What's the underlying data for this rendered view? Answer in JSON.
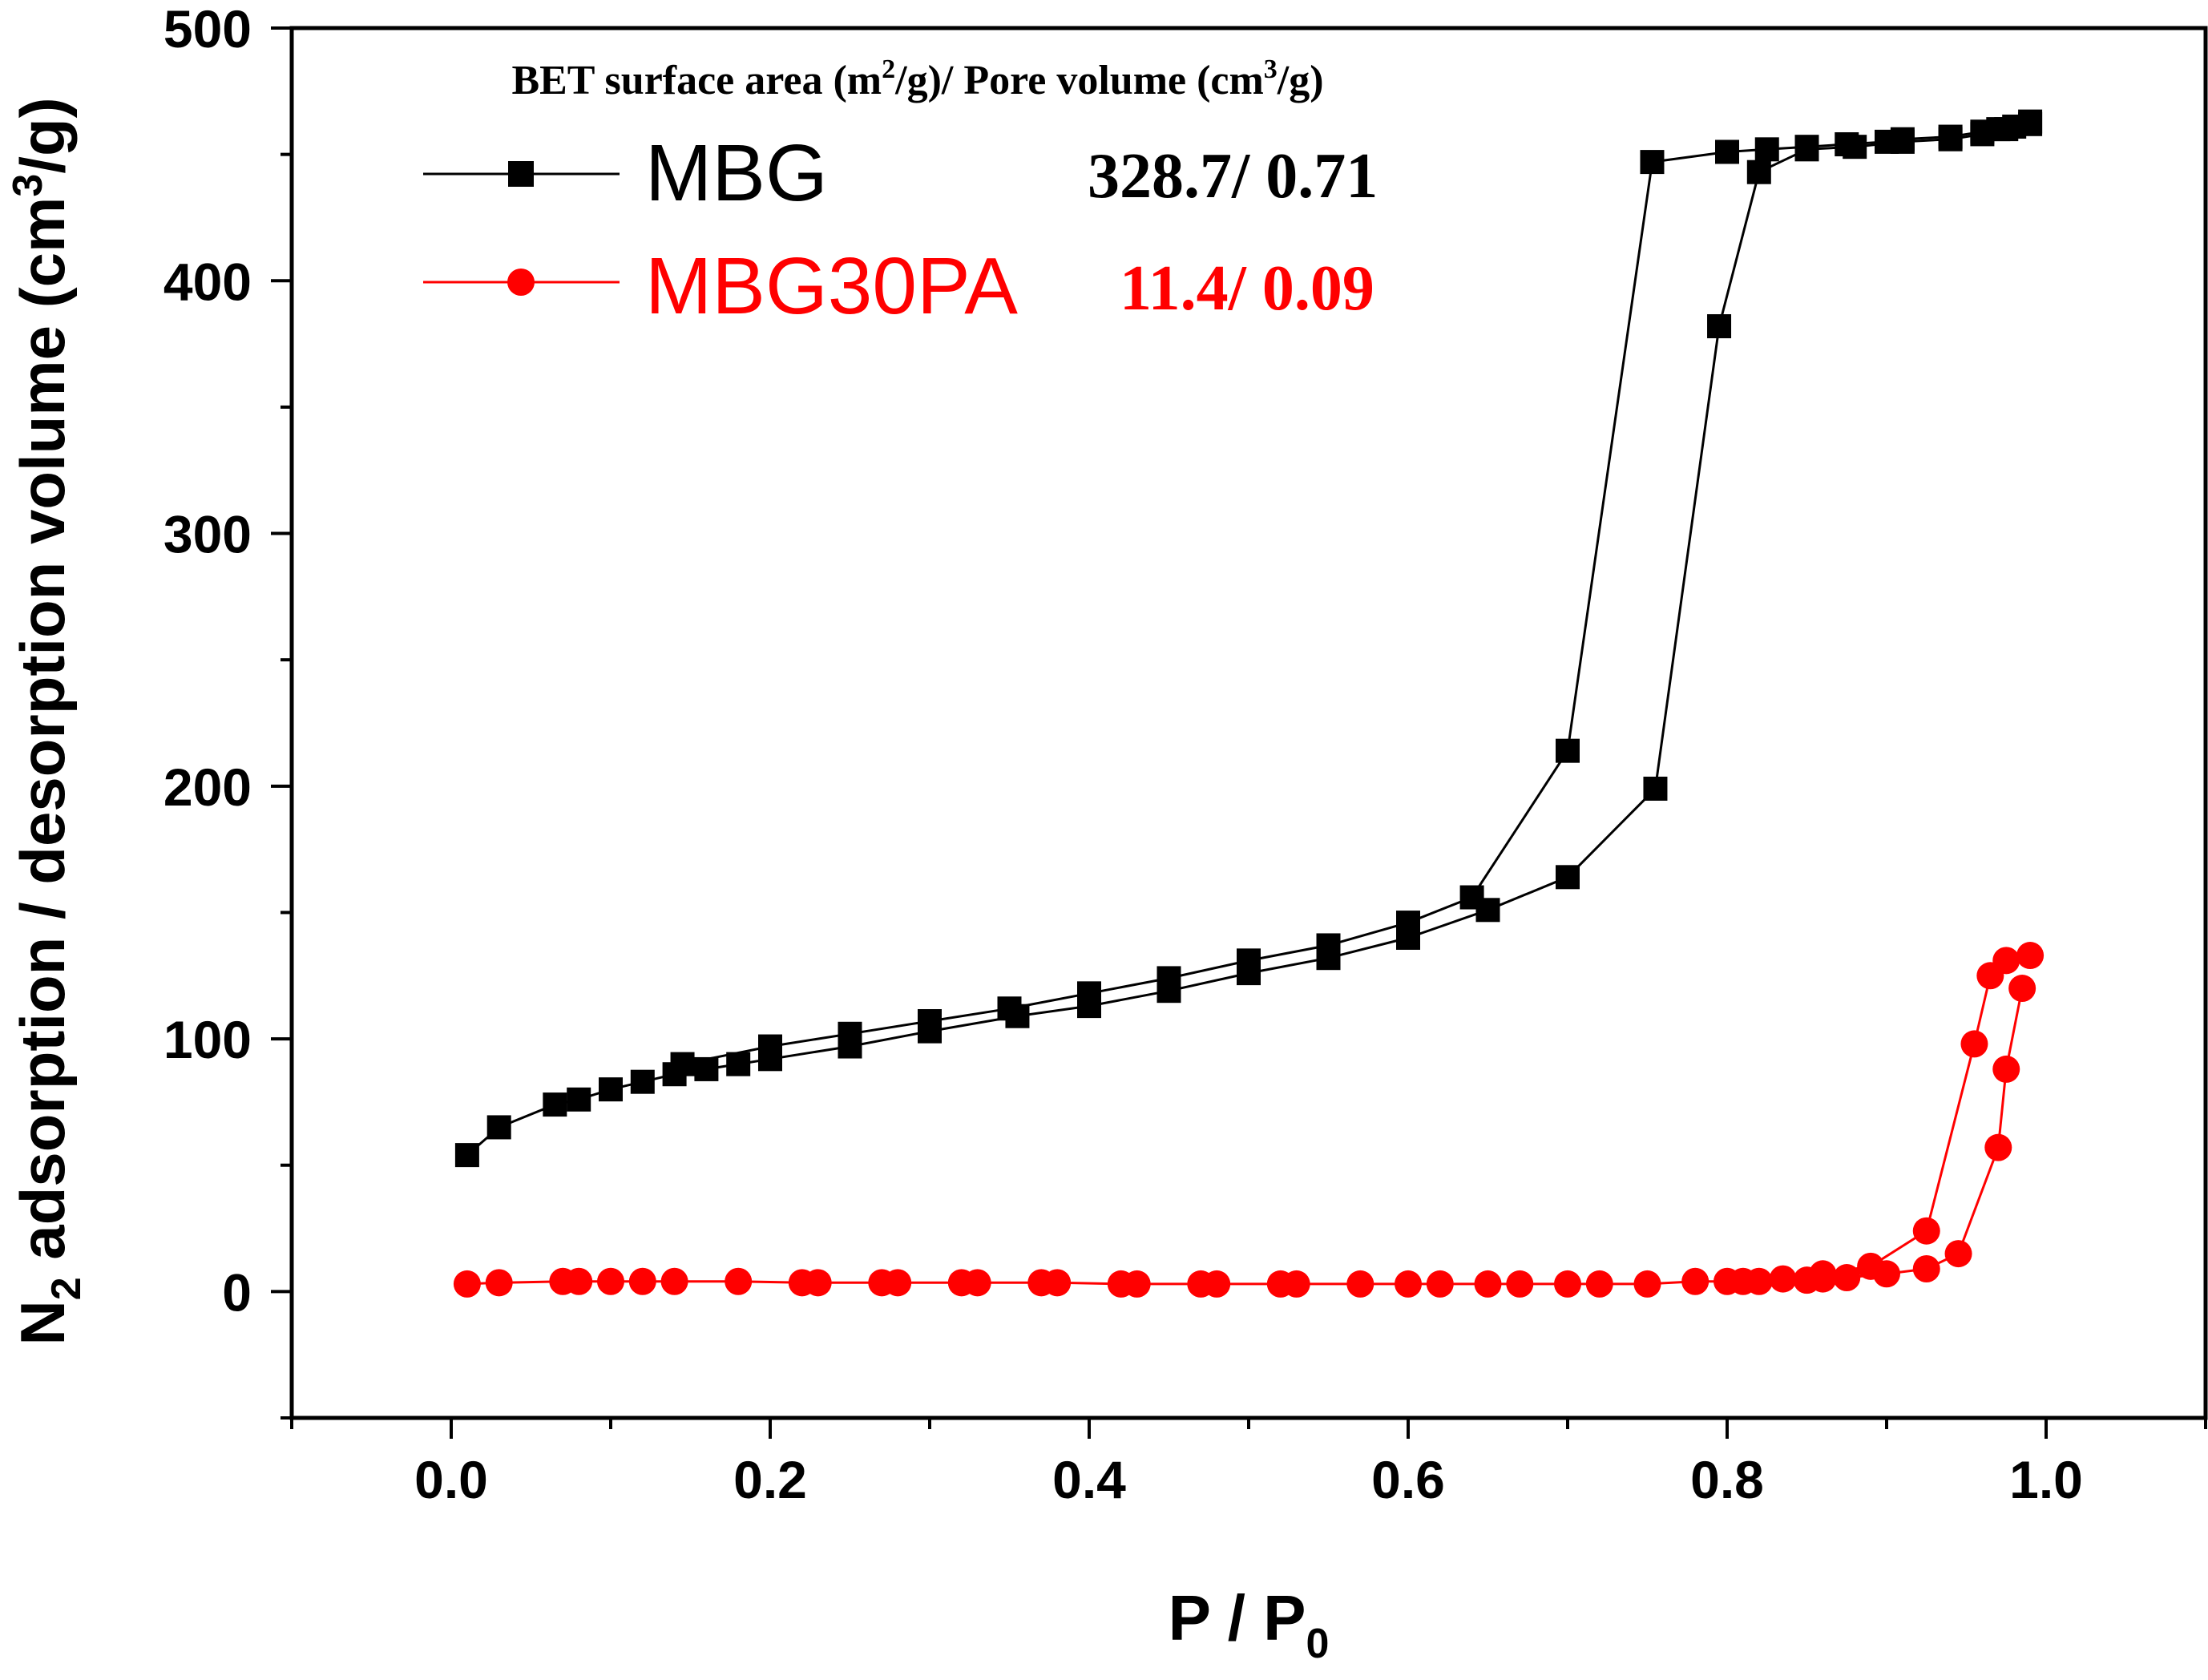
{
  "chart_data": {
    "type": "scatter",
    "title": "",
    "xlabel": "P / P",
    "xlabel_sub": "0",
    "ylabel_pre": "N",
    "ylabel_sub": "2",
    "ylabel_mid": " adsorption / desorption volume (cm",
    "ylabel_sup": "3",
    "ylabel_post": "/g)",
    "xlim": [
      -0.1,
      1.1
    ],
    "ylim": [
      -50,
      500
    ],
    "xticks": [
      "0.0",
      "0.2",
      "0.4",
      "0.6",
      "0.8",
      "1.0"
    ],
    "yticks": [
      "0",
      "100",
      "200",
      "300",
      "400",
      "500"
    ],
    "header": {
      "part1": "BET surface area (m",
      "sup1": "2",
      "part2": "/g)/ Pore volume (cm",
      "sup2": "3",
      "part3": "/g)"
    },
    "series": [
      {
        "name": "MBG",
        "value_label": "328.7/ 0.71",
        "color": "#000000",
        "marker": "square",
        "adsorption": {
          "x": [
            0.01,
            0.03,
            0.065,
            0.08,
            0.1,
            0.12,
            0.14,
            0.16,
            0.18,
            0.2,
            0.25,
            0.3,
            0.355,
            0.4,
            0.45,
            0.5,
            0.55,
            0.6,
            0.65,
            0.7,
            0.755,
            0.795,
            0.82,
            0.85,
            0.88,
            0.91,
            0.94,
            0.96,
            0.975,
            0.99
          ],
          "y": [
            54,
            65,
            74,
            76,
            80,
            83,
            86,
            88,
            90,
            92,
            97,
            103,
            109,
            113,
            119,
            126,
            132,
            140,
            151,
            164,
            199,
            382,
            443,
            452,
            453,
            455,
            456,
            458,
            460,
            462
          ]
        },
        "desorption": {
          "x": [
            0.99,
            0.98,
            0.97,
            0.96,
            0.94,
            0.91,
            0.9,
            0.875,
            0.85,
            0.825,
            0.8,
            0.753,
            0.7,
            0.64,
            0.6,
            0.55,
            0.5,
            0.45,
            0.4,
            0.35,
            0.3,
            0.25,
            0.2,
            0.145
          ],
          "y": [
            463,
            461,
            460,
            459,
            457,
            456,
            455,
            454,
            453,
            452,
            451,
            447,
            214,
            156,
            146,
            137,
            131,
            124,
            118,
            112,
            107,
            102,
            97,
            90
          ]
        }
      },
      {
        "name": "MBG30PA",
        "value_label": "11.4/ 0.09",
        "color": "#ff0000",
        "marker": "circle",
        "adsorption": {
          "x": [
            0.01,
            0.03,
            0.07,
            0.08,
            0.1,
            0.12,
            0.14,
            0.18,
            0.22,
            0.23,
            0.27,
            0.28,
            0.32,
            0.33,
            0.37,
            0.38,
            0.42,
            0.43,
            0.47,
            0.48,
            0.52,
            0.53,
            0.57,
            0.6,
            0.62,
            0.65,
            0.67,
            0.7,
            0.72,
            0.75,
            0.78,
            0.8,
            0.81,
            0.82,
            0.85,
            0.86,
            0.875,
            0.9,
            0.925,
            0.945,
            0.97,
            0.975,
            0.985
          ],
          "y": [
            3,
            3.5,
            4,
            4,
            4,
            4,
            4,
            4,
            3.5,
            3.5,
            3.5,
            3.5,
            3.5,
            3.5,
            3.5,
            3.5,
            3,
            3,
            3,
            3,
            3,
            3,
            3,
            3,
            3,
            3,
            3,
            3,
            3,
            3,
            4,
            4,
            4,
            4,
            4.5,
            5,
            5.5,
            7,
            9,
            15,
            57,
            88,
            120
          ]
        },
        "desorption": {
          "x": [
            0.99,
            0.975,
            0.965,
            0.955,
            0.925,
            0.89,
            0.86,
            0.835
          ],
          "y": [
            133,
            131,
            125,
            98,
            24,
            10,
            7,
            5
          ]
        }
      }
    ]
  }
}
